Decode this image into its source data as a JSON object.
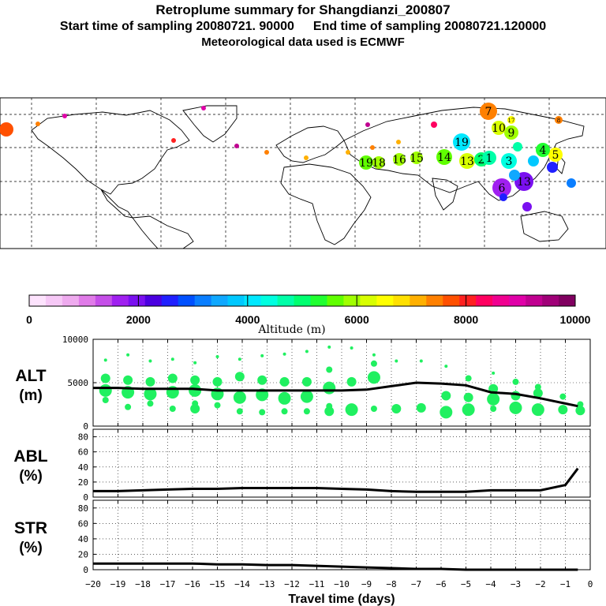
{
  "header": {
    "title": "Retroplume summary for Shangdianzi_200807",
    "start": "Start time of sampling 20080721. 90000",
    "end": "End time of sampling 20080721.120000",
    "met": "Meteorological data used is ECMWF"
  },
  "colorbar": {
    "label": "Altitude (m)",
    "min": 0,
    "max": 10000,
    "tick_labels": [
      "0",
      "2000",
      "4000",
      "6000",
      "8000",
      "10000"
    ],
    "colors": [
      "#fde3fd",
      "#f6c8f6",
      "#eeaaee",
      "#e07be8",
      "#c54fe8",
      "#a020f0",
      "#7a10f0",
      "#4b00e0",
      "#2020ff",
      "#0050ff",
      "#0a7eff",
      "#10a8ff",
      "#00c8ff",
      "#00e8ff",
      "#00ffe0",
      "#00ffa8",
      "#00ff70",
      "#20ff30",
      "#60ff00",
      "#a0ff00",
      "#d8ff00",
      "#ffff00",
      "#ffe000",
      "#ffb000",
      "#ff8000",
      "#ff5000",
      "#ff2020",
      "#ff0060",
      "#f00090",
      "#e000a8",
      "#c00090",
      "#a00078",
      "#800060"
    ]
  },
  "map": {
    "labels": [
      {
        "text": "7",
        "size": "big"
      },
      {
        "text": "9",
        "size": "big"
      },
      {
        "text": "10",
        "size": "big"
      },
      {
        "text": "19",
        "size": "big"
      },
      {
        "text": "14",
        "size": "big"
      },
      {
        "text": "13",
        "size": "big"
      },
      {
        "text": "15",
        "size": "big"
      },
      {
        "text": "16",
        "size": "big"
      },
      {
        "text": "18",
        "size": "big"
      },
      {
        "text": "19",
        "size": "big"
      },
      {
        "text": "5",
        "size": "big"
      },
      {
        "text": "4",
        "size": "big"
      },
      {
        "text": "2",
        "size": "big"
      },
      {
        "text": "1",
        "size": "big"
      },
      {
        "text": "3",
        "size": "big"
      },
      {
        "text": "13",
        "size": "big"
      },
      {
        "text": "6",
        "size": "big"
      },
      {
        "text": "17",
        "size": "small"
      },
      {
        "text": "8",
        "size": "small"
      }
    ]
  },
  "chart_data": [
    {
      "type": "line",
      "panel": "ALT",
      "ylabel": "ALT\n(m)",
      "ylabel_line1": "ALT",
      "ylabel_line2": "(m)",
      "ylim": [
        0,
        10000
      ],
      "yticks": [
        "0",
        "5000",
        "10000"
      ],
      "x": [
        -20,
        -19,
        -18,
        -17,
        -16,
        -15,
        -14,
        -13,
        -12,
        -11,
        -10,
        -9,
        -8,
        -7,
        -6,
        -5,
        -4,
        -3,
        -2,
        -1,
        -0.5
      ],
      "values": [
        4400,
        4400,
        4300,
        4300,
        4300,
        4100,
        4100,
        4100,
        4100,
        4100,
        4100,
        4200,
        4600,
        5000,
        4900,
        4700,
        3900,
        3700,
        3200,
        2600,
        2300
      ],
      "dots": [
        {
          "x": -19.5,
          "ys": [
            7600,
            5500,
            4100,
            3000
          ]
        },
        {
          "x": -18.6,
          "ys": [
            8200,
            5300,
            3900,
            2200
          ]
        },
        {
          "x": -17.7,
          "ys": [
            7500,
            5100,
            3700,
            2600
          ]
        },
        {
          "x": -16.8,
          "ys": [
            7700,
            5500,
            3900,
            2000
          ]
        },
        {
          "x": -15.9,
          "ys": [
            7300,
            5300,
            4100,
            2600,
            2000
          ]
        },
        {
          "x": -15.0,
          "ys": [
            8000,
            5100,
            3700,
            2400
          ]
        },
        {
          "x": -14.1,
          "ys": [
            7700,
            5700,
            3300,
            1700
          ]
        },
        {
          "x": -13.2,
          "ys": [
            8100,
            5300,
            3600,
            1600
          ]
        },
        {
          "x": -12.3,
          "ys": [
            8300,
            5100,
            3200,
            1700
          ]
        },
        {
          "x": -11.4,
          "ys": [
            8600,
            5100,
            3400,
            1700
          ]
        },
        {
          "x": -10.5,
          "ys": [
            9100,
            6500,
            4400,
            2300,
            1700
          ]
        },
        {
          "x": -9.6,
          "ys": [
            9000,
            5100,
            1900
          ]
        },
        {
          "x": -8.7,
          "ys": [
            8200,
            7200,
            5600,
            2000
          ]
        },
        {
          "x": -7.8,
          "ys": [
            7500,
            2000
          ]
        },
        {
          "x": -6.8,
          "ys": [
            7500,
            2100
          ]
        },
        {
          "x": -5.8,
          "ys": [
            6900,
            3500,
            1600
          ]
        },
        {
          "x": -4.9,
          "ys": [
            5500,
            3300,
            1900
          ]
        },
        {
          "x": -3.9,
          "ys": [
            6100,
            4300,
            3100,
            2000
          ]
        },
        {
          "x": -3.0,
          "ys": [
            5100,
            3500,
            2100
          ]
        },
        {
          "x": -2.1,
          "ys": [
            4500,
            3800,
            1900
          ]
        },
        {
          "x": -1.1,
          "ys": [
            3400,
            1900
          ]
        },
        {
          "x": -0.4,
          "ys": [
            2500,
            1800
          ]
        }
      ]
    },
    {
      "type": "line",
      "panel": "ABL",
      "ylabel_line1": "ABL",
      "ylabel_line2": "(%)",
      "ylim": [
        0,
        90
      ],
      "yticks": [
        "0",
        "20",
        "40",
        "60",
        "80"
      ],
      "x": [
        -20,
        -19,
        -18,
        -17,
        -16,
        -15,
        -14,
        -13,
        -12,
        -11,
        -10,
        -9,
        -8,
        -7,
        -6,
        -5,
        -4,
        -3,
        -2,
        -1,
        -0.5
      ],
      "values": [
        8,
        8,
        9,
        10,
        11,
        11,
        12,
        12,
        12,
        12,
        11,
        10,
        8,
        7,
        7,
        7,
        9,
        9,
        9,
        16,
        38
      ]
    },
    {
      "type": "line",
      "panel": "STR",
      "ylabel_line1": "STR",
      "ylabel_line2": "(%)",
      "ylim": [
        0,
        90
      ],
      "yticks": [
        "0",
        "20",
        "40",
        "60",
        "80"
      ],
      "x": [
        -20,
        -19,
        -18,
        -17,
        -16,
        -15,
        -14,
        -13,
        -12,
        -11,
        -10,
        -9,
        -8,
        -7,
        -6,
        -5,
        -4,
        -3,
        -2,
        -1,
        -0.5
      ],
      "values": [
        8,
        8,
        8,
        8,
        8,
        7,
        7,
        6,
        6,
        5,
        4,
        3,
        2,
        1,
        1,
        0,
        0,
        0,
        0,
        0,
        0
      ],
      "xlabel": "Travel time (days)",
      "xticks": [
        "-20",
        "-19",
        "-18",
        "-17",
        "-16",
        "-15",
        "-14",
        "-13",
        "-12",
        "-11",
        "-10",
        "-9",
        "-8",
        "-7",
        "-6",
        "-5",
        "-4",
        "-3",
        "-2",
        "-1",
        "0"
      ]
    }
  ]
}
